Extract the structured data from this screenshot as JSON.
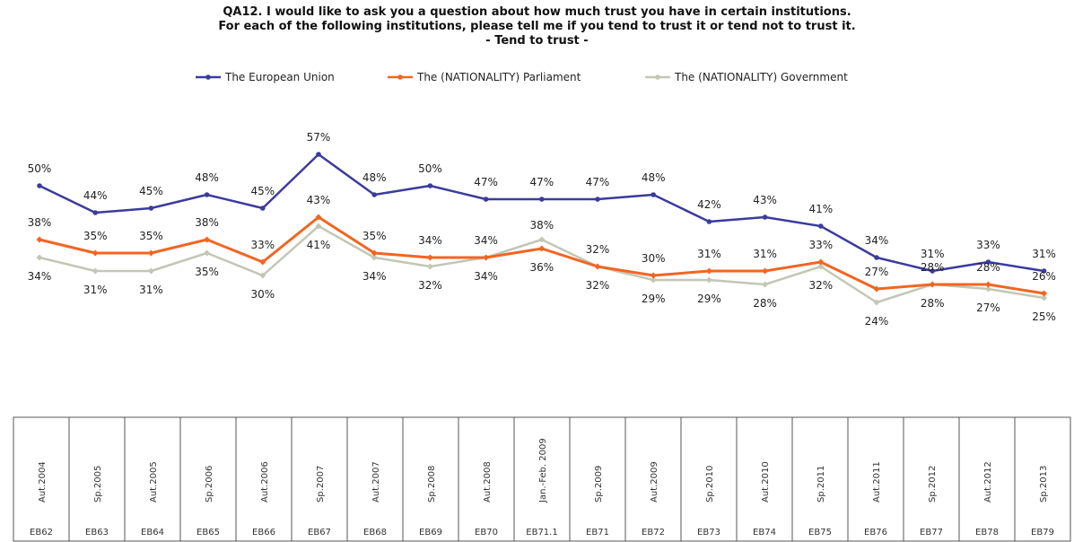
{
  "title_lines": [
    "QA12. I would like to ask you a question about how much trust you have in certain institutions.",
    "For each of the following  institutions,  please tell me if you tend to trust it or tend not to trust it.",
    "- Tend to trust -"
  ],
  "chart_data": {
    "type": "line",
    "categories": [
      {
        "date": "Aut.2004",
        "wave": "EB62"
      },
      {
        "date": "Sp.2005",
        "wave": "EB63"
      },
      {
        "date": "Aut.2005",
        "wave": "EB64"
      },
      {
        "date": "Sp.2006",
        "wave": "EB65"
      },
      {
        "date": "Aut.2006",
        "wave": "EB66"
      },
      {
        "date": "Sp.2007",
        "wave": "EB67"
      },
      {
        "date": "Aut.2007",
        "wave": "EB68"
      },
      {
        "date": "Sp.2008",
        "wave": "EB69"
      },
      {
        "date": "Aut.2008",
        "wave": "EB70"
      },
      {
        "date": "Jan.-Feb. 2009",
        "wave": "EB71.1"
      },
      {
        "date": "Sp.2009",
        "wave": "EB71"
      },
      {
        "date": "Aut.2009",
        "wave": "EB72"
      },
      {
        "date": "Sp.2010",
        "wave": "EB73"
      },
      {
        "date": "Aut.2010",
        "wave": "EB74"
      },
      {
        "date": "Sp.2011",
        "wave": "EB75"
      },
      {
        "date": "Aut.2011",
        "wave": "EB76"
      },
      {
        "date": "Sp.2012",
        "wave": "EB77"
      },
      {
        "date": "Aut.2012",
        "wave": "EB78"
      },
      {
        "date": "Sp.2013",
        "wave": "EB79"
      }
    ],
    "series": [
      {
        "name": "The European Union",
        "color": "#3b3b9e",
        "values": [
          50,
          44,
          45,
          48,
          45,
          57,
          48,
          50,
          47,
          47,
          47,
          48,
          42,
          43,
          41,
          34,
          31,
          33,
          31
        ]
      },
      {
        "name": "The (NATIONALITY) Parliament",
        "color": "#f26522",
        "values": [
          38,
          35,
          35,
          38,
          33,
          43,
          35,
          34,
          34,
          36,
          32,
          30,
          31,
          31,
          33,
          27,
          28,
          28,
          26
        ]
      },
      {
        "name": "The (NATIONALITY) Government",
        "color": "#c2c7b5",
        "values": [
          34,
          31,
          31,
          35,
          30,
          41,
          34,
          32,
          34,
          38,
          32,
          29,
          29,
          28,
          32,
          24,
          28,
          27,
          25
        ]
      }
    ],
    "value_suffix": "%",
    "legend_position": "top"
  }
}
